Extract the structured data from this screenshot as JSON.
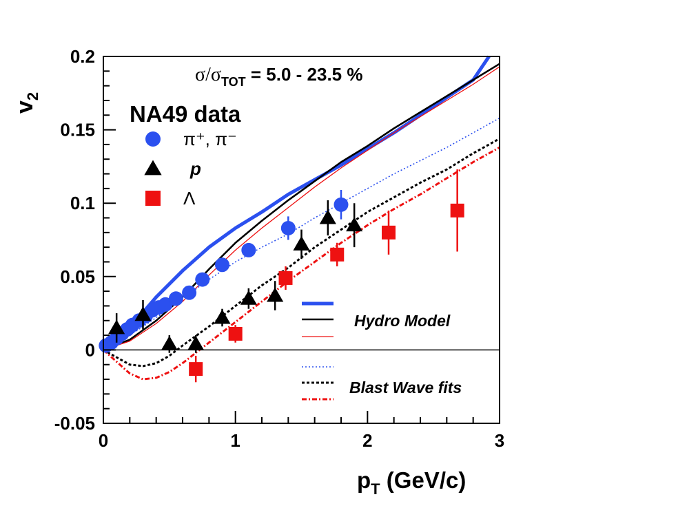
{
  "chart_data": {
    "type": "scatter",
    "title": "",
    "annotation": {
      "prefix": "σ/σ",
      "sub": "TOT",
      "suffix": " = 5.0 - 23.5 %"
    },
    "xlabel": {
      "main": "p",
      "sub": "T",
      "unit": " (GeV/c)"
    },
    "ylabel": {
      "main": "v",
      "sub": "2"
    },
    "xlim": [
      0,
      3
    ],
    "ylim": [
      -0.05,
      0.2
    ],
    "xticks": [
      {
        "v": 0,
        "label": "0"
      },
      {
        "v": 1,
        "label": "1"
      },
      {
        "v": 2,
        "label": "2"
      },
      {
        "v": 3,
        "label": "3"
      }
    ],
    "yticks": [
      {
        "v": -0.05,
        "label": "-0.05"
      },
      {
        "v": 0,
        "label": "0"
      },
      {
        "v": 0.05,
        "label": "0.05"
      },
      {
        "v": 0.1,
        "label": "0.1"
      },
      {
        "v": 0.15,
        "label": "0.15"
      },
      {
        "v": 0.2,
        "label": "0.2"
      }
    ],
    "legend_data": {
      "title": "NA49 data",
      "entries": [
        {
          "label": "π⁺, π⁻",
          "marker": "circle",
          "color": "#2b50ef"
        },
        {
          "label": "p",
          "marker": "triangle",
          "color": "#000000"
        },
        {
          "label": "Λ",
          "marker": "square",
          "color": "#ee1111"
        }
      ]
    },
    "legend_models": {
      "hydro_label": "Hydro Model",
      "blast_label": "Blast Wave fits"
    },
    "series": [
      {
        "name": "π⁺, π⁻",
        "marker": "circle",
        "color": "#2b50ef",
        "points": [
          [
            0.02,
            0.003,
            0.002
          ],
          [
            0.06,
            0.005,
            0.002
          ],
          [
            0.1,
            0.008,
            0.002
          ],
          [
            0.14,
            0.011,
            0.002
          ],
          [
            0.18,
            0.014,
            0.002
          ],
          [
            0.22,
            0.017,
            0.002
          ],
          [
            0.27,
            0.02,
            0.002
          ],
          [
            0.32,
            0.023,
            0.002
          ],
          [
            0.37,
            0.027,
            0.002
          ],
          [
            0.42,
            0.029,
            0.002
          ],
          [
            0.47,
            0.031,
            0.002
          ],
          [
            0.55,
            0.035,
            0.003
          ],
          [
            0.65,
            0.039,
            0.003
          ],
          [
            0.75,
            0.048,
            0.003
          ],
          [
            0.9,
            0.058,
            0.003
          ],
          [
            1.1,
            0.068,
            0.004
          ],
          [
            1.4,
            0.083,
            0.008
          ],
          [
            1.8,
            0.099,
            0.01
          ]
        ]
      },
      {
        "name": "p",
        "marker": "triangle",
        "color": "#000000",
        "points": [
          [
            0.1,
            0.015,
            0.01
          ],
          [
            0.3,
            0.024,
            0.01
          ],
          [
            0.5,
            0.004,
            0.006
          ],
          [
            0.7,
            0.004,
            0.006
          ],
          [
            0.9,
            0.022,
            0.006
          ],
          [
            1.1,
            0.035,
            0.007
          ],
          [
            1.3,
            0.037,
            0.01
          ],
          [
            1.5,
            0.072,
            0.01
          ],
          [
            1.7,
            0.09,
            0.012
          ],
          [
            1.9,
            0.085,
            0.015
          ]
        ]
      },
      {
        "name": "Λ",
        "marker": "square",
        "color": "#ee1111",
        "points": [
          [
            0.7,
            -0.013,
            0.009
          ],
          [
            1.0,
            0.011,
            0.006
          ],
          [
            1.38,
            0.049,
            0.008
          ],
          [
            1.77,
            0.065,
            0.008
          ],
          [
            2.16,
            0.08,
            0.015
          ],
          [
            2.68,
            0.095,
            0.028
          ]
        ]
      }
    ],
    "curves": [
      {
        "name": "Hydro pion",
        "style": "thick",
        "color": "#2b50ef",
        "points": [
          [
            0,
            0
          ],
          [
            0.2,
            0.015
          ],
          [
            0.4,
            0.036
          ],
          [
            0.6,
            0.054
          ],
          [
            0.8,
            0.07
          ],
          [
            1.0,
            0.083
          ],
          [
            1.2,
            0.094
          ],
          [
            1.4,
            0.106
          ],
          [
            1.6,
            0.116
          ],
          [
            1.8,
            0.126
          ],
          [
            2.0,
            0.137
          ],
          [
            2.2,
            0.148
          ],
          [
            2.4,
            0.16
          ],
          [
            2.6,
            0.172
          ],
          [
            2.8,
            0.184
          ],
          [
            2.92,
            0.2
          ]
        ]
      },
      {
        "name": "Hydro proton",
        "style": "medium",
        "color": "#000000",
        "points": [
          [
            0,
            0
          ],
          [
            0.2,
            0.007
          ],
          [
            0.4,
            0.02
          ],
          [
            0.6,
            0.036
          ],
          [
            0.8,
            0.055
          ],
          [
            1.0,
            0.073
          ],
          [
            1.2,
            0.088
          ],
          [
            1.4,
            0.102
          ],
          [
            1.6,
            0.115
          ],
          [
            1.8,
            0.128
          ],
          [
            2.0,
            0.139
          ],
          [
            2.2,
            0.151
          ],
          [
            2.4,
            0.162
          ],
          [
            2.6,
            0.173
          ],
          [
            2.8,
            0.184
          ],
          [
            3.0,
            0.195
          ]
        ]
      },
      {
        "name": "Hydro lambda",
        "style": "thin",
        "color": "#ee1111",
        "points": [
          [
            0,
            0
          ],
          [
            0.2,
            0.006
          ],
          [
            0.4,
            0.018
          ],
          [
            0.6,
            0.033
          ],
          [
            0.8,
            0.051
          ],
          [
            1.0,
            0.068
          ],
          [
            1.2,
            0.083
          ],
          [
            1.4,
            0.097
          ],
          [
            1.6,
            0.111
          ],
          [
            1.8,
            0.124
          ],
          [
            2.0,
            0.136
          ],
          [
            2.2,
            0.148
          ],
          [
            2.4,
            0.159
          ],
          [
            2.6,
            0.17
          ],
          [
            2.8,
            0.181
          ],
          [
            3.0,
            0.193
          ]
        ]
      },
      {
        "name": "Blast wave pion",
        "style": "dotted",
        "color": "#2b50ef",
        "points": [
          [
            0,
            0
          ],
          [
            0.2,
            0.01
          ],
          [
            0.4,
            0.022
          ],
          [
            0.6,
            0.035
          ],
          [
            0.8,
            0.048
          ],
          [
            1.0,
            0.06
          ],
          [
            1.2,
            0.07
          ],
          [
            1.4,
            0.079
          ],
          [
            1.6,
            0.09
          ],
          [
            1.8,
            0.1
          ],
          [
            2.0,
            0.11
          ],
          [
            2.2,
            0.12
          ],
          [
            2.4,
            0.129
          ],
          [
            2.6,
            0.138
          ],
          [
            2.8,
            0.148
          ],
          [
            3.0,
            0.158
          ]
        ]
      },
      {
        "name": "Blast wave proton",
        "style": "dashed",
        "color": "#000000",
        "points": [
          [
            0,
            0
          ],
          [
            0.1,
            -0.005
          ],
          [
            0.2,
            -0.01
          ],
          [
            0.3,
            -0.011
          ],
          [
            0.4,
            -0.009
          ],
          [
            0.5,
            -0.004
          ],
          [
            0.6,
            0.003
          ],
          [
            0.8,
            0.016
          ],
          [
            1.0,
            0.03
          ],
          [
            1.2,
            0.044
          ],
          [
            1.4,
            0.056
          ],
          [
            1.6,
            0.07
          ],
          [
            1.8,
            0.082
          ],
          [
            2.0,
            0.094
          ],
          [
            2.2,
            0.104
          ],
          [
            2.4,
            0.114
          ],
          [
            2.6,
            0.123
          ],
          [
            2.8,
            0.134
          ],
          [
            3.0,
            0.144
          ]
        ]
      },
      {
        "name": "Blast wave lambda",
        "style": "dashdot",
        "color": "#ee1111",
        "points": [
          [
            0,
            0
          ],
          [
            0.1,
            -0.008
          ],
          [
            0.2,
            -0.016
          ],
          [
            0.3,
            -0.02
          ],
          [
            0.4,
            -0.019
          ],
          [
            0.5,
            -0.015
          ],
          [
            0.6,
            -0.009
          ],
          [
            0.8,
            0.005
          ],
          [
            1.0,
            0.019
          ],
          [
            1.2,
            0.033
          ],
          [
            1.4,
            0.047
          ],
          [
            1.6,
            0.06
          ],
          [
            1.8,
            0.073
          ],
          [
            2.0,
            0.085
          ],
          [
            2.2,
            0.096
          ],
          [
            2.4,
            0.106
          ],
          [
            2.6,
            0.117
          ],
          [
            2.8,
            0.128
          ],
          [
            3.0,
            0.138
          ]
        ]
      }
    ]
  }
}
